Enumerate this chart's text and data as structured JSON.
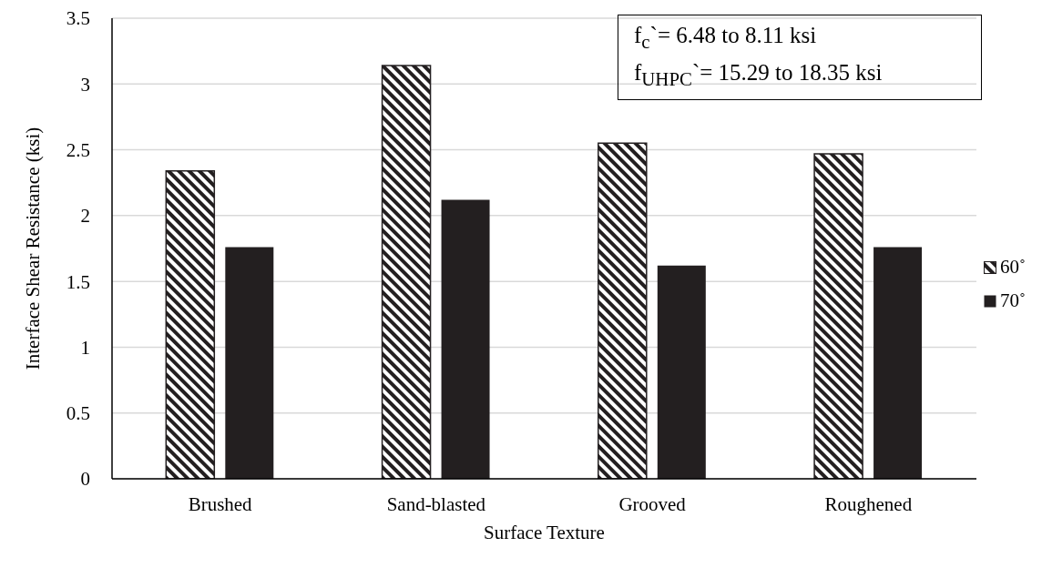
{
  "chart_data": {
    "type": "bar",
    "xlabel": "Surface Texture",
    "ylabel": "Interface Shear  Resistance (ksi)",
    "categories": [
      "Brushed",
      "Sand-blasted",
      "Grooved",
      "Roughened"
    ],
    "series": [
      {
        "name": "60˚",
        "color": "#231f20",
        "values": [
          2.34,
          3.14,
          2.55,
          2.47
        ]
      },
      {
        "name": "70˚",
        "color": "#231f20",
        "values": [
          1.76,
          2.12,
          1.62,
          1.76
        ]
      }
    ],
    "ylim": [
      0,
      3.5
    ],
    "yticks": [
      0,
      0.5,
      1,
      1.5,
      2,
      2.5,
      3,
      3.5
    ],
    "grid": "y",
    "legend": "right",
    "annotations": [
      "f$_{c}$`= 6.48 to 8.11 ksi",
      "f$_{UHPC}$`= 15.29 to 18.35 ksi"
    ]
  }
}
